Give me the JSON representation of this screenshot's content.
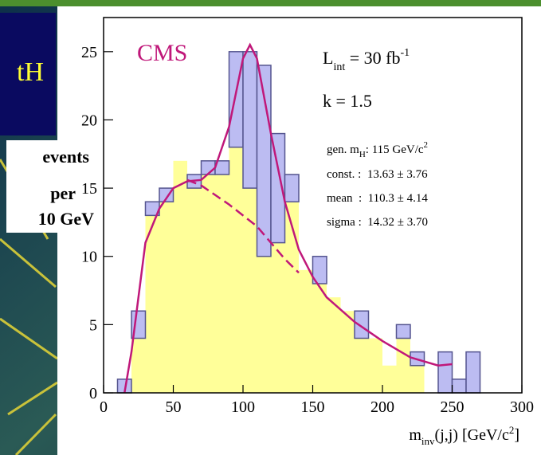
{
  "slide_label": "tH",
  "chart_data": {
    "type": "histogram",
    "y_label": [
      "events",
      "per",
      "10 GeV"
    ],
    "x_label": {
      "main": "m",
      "sub": "inv",
      "rest": "(j,j) [GeV/c",
      "sup": "2",
      "end": "]"
    },
    "annotations": {
      "experiment": "CMS",
      "lumi": {
        "main": "L",
        "sub": "int",
        "rest": " = 30 fb",
        "sup": "-1"
      },
      "k": "k = 1.5",
      "gen": {
        "main": "gen. m",
        "sub": "H",
        "rest": ": 115 GeV/c",
        "sup": "2"
      },
      "fit": [
        "const. :  13.63 ± 3.76",
        "mean  :  110.3 ± 4.14",
        "sigma :  14.32 ± 3.70"
      ]
    },
    "bins": [
      10,
      20,
      30,
      40,
      50,
      60,
      70,
      80,
      90,
      100,
      110,
      120,
      130,
      140,
      150,
      160,
      170,
      180,
      190,
      200,
      210,
      220,
      230,
      240,
      250,
      260,
      270
    ],
    "series": [
      {
        "color": "#ffff99",
        "values": [
          0,
          4,
          13,
          14,
          17,
          15,
          16,
          16,
          18,
          15,
          10,
          11,
          14,
          9,
          8,
          7,
          6,
          4,
          4,
          2,
          4,
          2,
          0,
          0,
          0,
          0
        ]
      },
      {
        "color": "#bcbcf2",
        "values": [
          1,
          2,
          1,
          1,
          0,
          1,
          1,
          1,
          7,
          10,
          14,
          8,
          2,
          0,
          2,
          0,
          0,
          2,
          0,
          0,
          1,
          1,
          0,
          3,
          1,
          3
        ]
      }
    ],
    "outline_color": "#55558f",
    "curves": [
      {
        "color": "#c0187a",
        "dashed": false,
        "x": [
          15,
          20,
          30,
          40,
          50,
          60,
          70,
          80,
          90,
          100,
          105,
          110,
          120,
          130,
          140,
          150,
          160,
          180,
          200,
          220,
          240,
          250
        ],
        "y": [
          0,
          3,
          11,
          13.5,
          15,
          15.5,
          15.6,
          16.5,
          19.5,
          24.5,
          25.5,
          24.5,
          19,
          14,
          10.5,
          8.5,
          7,
          5.2,
          3.8,
          2.6,
          2,
          2.1
        ]
      },
      {
        "color": "#c0187a",
        "dashed": true,
        "x": [
          60,
          70,
          80,
          90,
          100,
          110,
          120,
          130,
          140
        ],
        "y": [
          15.6,
          15.2,
          14.5,
          13.8,
          13,
          12.2,
          11,
          9.8,
          8.8
        ]
      }
    ],
    "xlim": [
      0,
      300
    ],
    "xticks": [
      0,
      50,
      100,
      150,
      200,
      250,
      300
    ],
    "ylim": [
      0,
      27.5
    ],
    "yticks": [
      0,
      5,
      10,
      15,
      20,
      25
    ]
  }
}
